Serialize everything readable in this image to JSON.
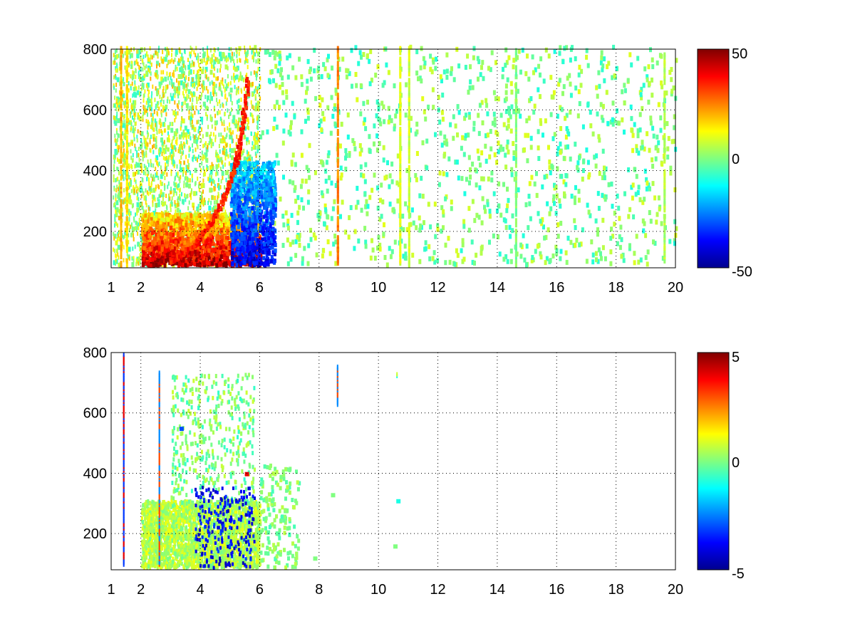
{
  "chart_data": [
    {
      "type": "heatmap",
      "title": "",
      "xlabel": "",
      "ylabel": "",
      "xlim": [
        1,
        20
      ],
      "ylim": [
        80,
        800
      ],
      "xticks": [
        "1",
        "2",
        "4",
        "6",
        "8",
        "10",
        "12",
        "14",
        "16",
        "18",
        "20"
      ],
      "yticks": [
        "200",
        "400",
        "600",
        "800"
      ],
      "grid": true,
      "colormap": "jet",
      "colorbar": {
        "range": [
          -50,
          50
        ],
        "ticks": [
          "-50",
          "0",
          "50"
        ]
      },
      "features": {
        "low_freq_strong_response": {
          "x_range": [
            2,
            6
          ],
          "y_range": [
            80,
            250
          ],
          "value": 45
        },
        "negative_band": {
          "x_range": [
            5,
            6.5
          ],
          "y_range": [
            80,
            420
          ],
          "value": -40
        },
        "ridge_curve": [
          [
            3.0,
            90
          ],
          [
            3.8,
            150
          ],
          [
            4.4,
            230
          ],
          [
            4.9,
            330
          ],
          [
            5.2,
            430
          ],
          [
            5.4,
            560
          ],
          [
            5.6,
            700
          ]
        ],
        "vertical_streaks": [
          {
            "x": 1.3,
            "value": 20
          },
          {
            "x": 1.5,
            "value": 15
          },
          {
            "x": 8.6,
            "value": 25
          },
          {
            "x": 10.7,
            "value": 10
          },
          {
            "x": 11.0,
            "value": 8
          },
          {
            "x": 14.6,
            "value": 0
          },
          {
            "x": 19.6,
            "value": 5
          }
        ],
        "sparse_region": {
          "x_range": [
            6,
            20
          ],
          "y_range": [
            80,
            800
          ],
          "value_range": [
            -10,
            10
          ]
        }
      }
    },
    {
      "type": "heatmap",
      "title": "",
      "xlabel": "",
      "ylabel": "",
      "xlim": [
        1,
        20
      ],
      "ylim": [
        80,
        800
      ],
      "xticks": [
        "1",
        "2",
        "4",
        "6",
        "8",
        "10",
        "12",
        "14",
        "16",
        "18",
        "20"
      ],
      "yticks": [
        "200",
        "400",
        "600",
        "800"
      ],
      "grid": true,
      "colormap": "jet",
      "colorbar": {
        "range": [
          -5,
          5
        ],
        "ticks": [
          "-5",
          "0",
          "5"
        ]
      },
      "features": {
        "low_freq_cluster": {
          "x_range": [
            2,
            6
          ],
          "y_range": [
            80,
            300
          ],
          "value": 0.5
        },
        "vertical_streaks": [
          {
            "x": 1.4,
            "y_range": [
              90,
              790
            ],
            "value": 4
          },
          {
            "x": 2.6,
            "y_range": [
              90,
              730
            ],
            "value": 3
          },
          {
            "x": 8.6,
            "y_range": [
              620,
              750
            ],
            "value": 3
          },
          {
            "x": 10.6,
            "y_range": [
              715,
              725
            ],
            "value": -1
          }
        ],
        "isolated_points": [
          [
            7.8,
            110,
            0
          ],
          [
            8.4,
            320,
            0
          ],
          [
            10.6,
            300,
            -1
          ],
          [
            10.5,
            150,
            0
          ],
          [
            3.3,
            540,
            -3
          ],
          [
            5.5,
            390,
            4
          ]
        ]
      }
    }
  ]
}
